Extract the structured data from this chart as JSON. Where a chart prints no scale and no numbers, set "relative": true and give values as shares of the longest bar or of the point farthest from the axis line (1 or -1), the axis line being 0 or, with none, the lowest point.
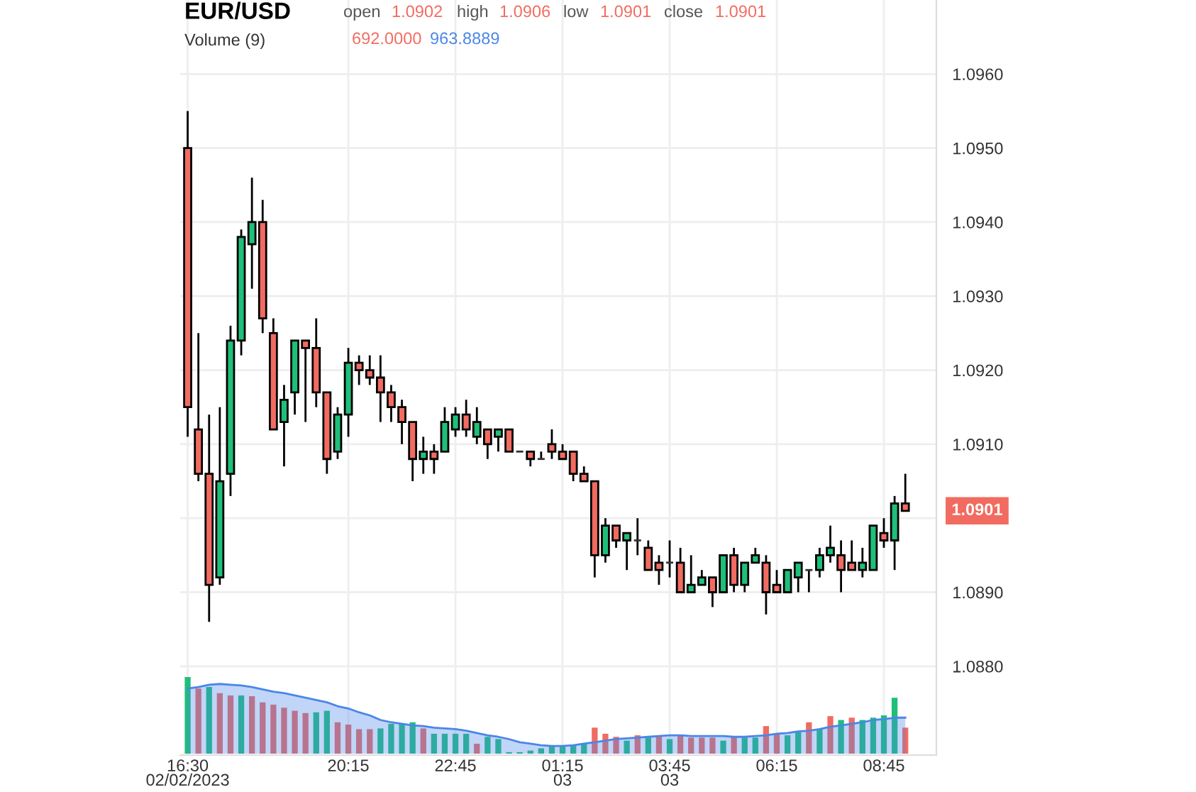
{
  "chart_data": [
    {
      "type": "candlestick",
      "title": "EUR/USD",
      "categories": [
        "16:30\n02/02/2023",
        null,
        null,
        null,
        null,
        null,
        null,
        null,
        null,
        null,
        null,
        null,
        null,
        null,
        null,
        "20:15",
        null,
        null,
        null,
        null,
        null,
        null,
        null,
        null,
        null,
        "22:45",
        null,
        null,
        null,
        null,
        null,
        null,
        null,
        null,
        null,
        "01:15\n03",
        null,
        null,
        null,
        null,
        null,
        null,
        null,
        null,
        null,
        "03:45\n03",
        null,
        null,
        null,
        null,
        null,
        null,
        null,
        null,
        null,
        "06:15",
        null,
        null,
        null,
        null,
        null,
        null,
        null,
        null,
        null,
        "08:45",
        null,
        null
      ],
      "ohlc": [
        [
          1.095,
          1.0955,
          1.0911,
          1.0915
        ],
        [
          1.0912,
          1.0925,
          1.0905,
          1.0906
        ],
        [
          1.0906,
          1.0914,
          1.0886,
          1.0891
        ],
        [
          1.0892,
          1.0915,
          1.0891,
          1.0905
        ],
        [
          1.0906,
          1.0926,
          1.0903,
          1.0924
        ],
        [
          1.0924,
          1.0939,
          1.0922,
          1.0938
        ],
        [
          1.0937,
          1.0946,
          1.0931,
          1.094
        ],
        [
          1.094,
          1.0943,
          1.0925,
          1.0927
        ],
        [
          1.0925,
          1.0927,
          1.0912,
          1.0912
        ],
        [
          1.0913,
          1.0918,
          1.0907,
          1.0916
        ],
        [
          1.0917,
          1.0924,
          1.0914,
          1.0924
        ],
        [
          1.0924,
          1.0924,
          1.0913,
          1.0923
        ],
        [
          1.0923,
          1.0927,
          1.0915,
          1.0917
        ],
        [
          1.0917,
          1.0917,
          1.0906,
          1.0908
        ],
        [
          1.0909,
          1.0915,
          1.0908,
          1.0914
        ],
        [
          1.0914,
          1.0923,
          1.0911,
          1.0921
        ],
        [
          1.0921,
          1.0922,
          1.0918,
          1.092
        ],
        [
          1.092,
          1.0922,
          1.0918,
          1.0919
        ],
        [
          1.0919,
          1.0922,
          1.0913,
          1.0917
        ],
        [
          1.0917,
          1.0918,
          1.0913,
          1.0915
        ],
        [
          1.0915,
          1.0916,
          1.091,
          1.0913
        ],
        [
          1.0913,
          1.0913,
          1.0905,
          1.0908
        ],
        [
          1.0908,
          1.0911,
          1.0906,
          1.0909
        ],
        [
          1.0909,
          1.091,
          1.0906,
          1.0908
        ],
        [
          1.0909,
          1.0915,
          1.0909,
          1.0913
        ],
        [
          1.0912,
          1.0915,
          1.0911,
          1.0914
        ],
        [
          1.0914,
          1.0916,
          1.0911,
          1.0912
        ],
        [
          1.0911,
          1.0915,
          1.091,
          1.0913
        ],
        [
          1.0912,
          1.0912,
          1.0908,
          1.091
        ],
        [
          1.0911,
          1.0912,
          1.0909,
          1.0912
        ],
        [
          1.0912,
          1.0912,
          1.0909,
          1.0909
        ],
        [
          1.0909,
          1.0909,
          1.0909,
          1.0909
        ],
        [
          1.0909,
          1.0909,
          1.0907,
          1.0908
        ],
        [
          1.0908,
          1.0909,
          1.0908,
          1.0908
        ],
        [
          1.091,
          1.0912,
          1.0908,
          1.0909
        ],
        [
          1.0909,
          1.091,
          1.0908,
          1.0908
        ],
        [
          1.0909,
          1.0909,
          1.0905,
          1.0906
        ],
        [
          1.0906,
          1.0907,
          1.0905,
          1.0905
        ],
        [
          1.0905,
          1.0905,
          1.0892,
          1.0895
        ],
        [
          1.0895,
          1.09,
          1.0894,
          1.0899
        ],
        [
          1.0899,
          1.0899,
          1.0896,
          1.0897
        ],
        [
          1.0897,
          1.0898,
          1.0893,
          1.0898
        ],
        [
          1.0897,
          1.09,
          1.0895,
          1.0897
        ],
        [
          1.0896,
          1.0897,
          1.0893,
          1.0893
        ],
        [
          1.0894,
          1.0895,
          1.0891,
          1.0893
        ],
        [
          1.0894,
          1.0897,
          1.0892,
          1.0894
        ],
        [
          1.0894,
          1.0896,
          1.089,
          1.089
        ],
        [
          1.089,
          1.0895,
          1.089,
          1.0891
        ],
        [
          1.0891,
          1.0893,
          1.0891,
          1.0892
        ],
        [
          1.0892,
          1.0892,
          1.0888,
          1.089
        ],
        [
          1.089,
          1.0895,
          1.089,
          1.0895
        ],
        [
          1.0895,
          1.0896,
          1.089,
          1.0891
        ],
        [
          1.0891,
          1.0894,
          1.089,
          1.0894
        ],
        [
          1.0894,
          1.0896,
          1.0894,
          1.0895
        ],
        [
          1.0894,
          1.0895,
          1.0887,
          1.089
        ],
        [
          1.0891,
          1.0893,
          1.089,
          1.089
        ],
        [
          1.089,
          1.0893,
          1.089,
          1.0893
        ],
        [
          1.0892,
          1.0894,
          1.089,
          1.0894
        ],
        [
          1.0893,
          1.0893,
          1.089,
          1.0893
        ],
        [
          1.0893,
          1.0896,
          1.0892,
          1.0895
        ],
        [
          1.0895,
          1.0899,
          1.0894,
          1.0896
        ],
        [
          1.0895,
          1.0897,
          1.089,
          1.0893
        ],
        [
          1.0894,
          1.0897,
          1.0893,
          1.0893
        ],
        [
          1.0893,
          1.0896,
          1.0892,
          1.0894
        ],
        [
          1.0893,
          1.0899,
          1.0893,
          1.0899
        ],
        [
          1.0898,
          1.09,
          1.0896,
          1.0897
        ],
        [
          1.0897,
          1.0903,
          1.0893,
          1.0902
        ],
        [
          1.0902,
          1.0906,
          1.0901,
          1.0901
        ]
      ],
      "ylim": [
        1.0868,
        1.097
      ],
      "yticks": [
        {
          "value": 1.088,
          "label": "1.0880"
        },
        {
          "value": 1.089,
          "label": "1.0890"
        },
        {
          "value": 1.09,
          "label": null
        },
        {
          "value": 1.091,
          "label": "1.0910"
        },
        {
          "value": 1.092,
          "label": "1.0920"
        },
        {
          "value": 1.093,
          "label": "1.0930"
        },
        {
          "value": 1.094,
          "label": "1.0940"
        },
        {
          "value": 1.095,
          "label": "1.0950"
        },
        {
          "value": 1.096,
          "label": "1.0960"
        }
      ],
      "grid": true,
      "annotations": [
        "open",
        "1.0902",
        "high",
        "1.0906",
        "low",
        "1.0901",
        "close",
        "1.0901",
        "1.0901"
      ]
    },
    {
      "type": "bar",
      "title": "Volume (9)",
      "relative": true,
      "tick_labels": false,
      "categories": [
        null,
        null,
        null,
        null,
        null,
        null,
        null,
        null,
        null,
        null,
        null,
        null,
        null,
        null,
        null,
        null,
        null,
        null,
        null,
        null,
        null,
        null,
        null,
        null,
        null,
        null,
        null,
        null,
        null,
        null,
        null,
        null,
        null,
        null,
        null,
        null,
        null,
        null,
        null,
        null,
        null,
        null,
        null,
        null,
        null,
        null,
        null,
        null,
        null,
        null,
        null,
        null,
        null,
        null,
        null,
        null,
        null,
        null,
        null,
        null,
        null,
        null,
        null,
        null,
        null,
        null,
        null,
        null
      ],
      "series": [
        {
          "type": "bar",
          "values": [
            1.0,
            0.85,
            0.87,
            0.79,
            0.76,
            0.76,
            0.75,
            0.67,
            0.64,
            0.6,
            0.56,
            0.53,
            0.54,
            0.56,
            0.41,
            0.38,
            0.32,
            0.32,
            0.33,
            0.39,
            0.39,
            0.41,
            0.33,
            0.26,
            0.26,
            0.26,
            0.26,
            0.13,
            0.22,
            0.19,
            0.02,
            0.02,
            0.04,
            0.07,
            0.11,
            0.11,
            0.11,
            0.13,
            0.34,
            0.26,
            0.22,
            0.17,
            0.24,
            0.21,
            0.23,
            0.19,
            0.24,
            0.21,
            0.21,
            0.21,
            0.17,
            0.23,
            0.21,
            0.21,
            0.36,
            0.26,
            0.24,
            0.28,
            0.41,
            0.32,
            0.49,
            0.44,
            0.47,
            0.44,
            0.47,
            0.5,
            0.73,
            0.34
          ],
          "colors": [
            "#1fbf7a",
            "#f26b60",
            "#1fbf7a",
            "#f26b60",
            "#f26b60",
            "#1fbf7a",
            "#f26b60",
            "#f26b60",
            "#f26b60",
            "#f26b60",
            "#f26b60",
            "#f26b60",
            "#1fbf7a",
            "#1fbf7a",
            "#f26b60",
            "#f26b60",
            "#f26b60",
            "#f26b60",
            "#1fbf7a",
            "#1fbf7a",
            "#1fbf7a",
            "#1fbf7a",
            "#f26b60",
            "#1fbf7a",
            "#1fbf7a",
            "#1fbf7a",
            "#1fbf7a",
            "#f26b60",
            "#1fbf7a",
            "#1fbf7a",
            "#1fbf7a",
            "#1fbf7a",
            "#1fbf7a",
            "#1fbf7a",
            "#1fbf7a",
            "#1fbf7a",
            "#1fbf7a",
            "#1fbf7a",
            "#f26b60",
            "#f26b60",
            "#f26b60",
            "#1fbf7a",
            "#f26b60",
            "#1fbf7a",
            "#f26b60",
            "#1fbf7a",
            "#f26b60",
            "#f26b60",
            "#f26b60",
            "#f26b60",
            "#1fbf7a",
            "#f26b60",
            "#1fbf7a",
            "#1fbf7a",
            "#f26b60",
            "#f26b60",
            "#1fbf7a",
            "#1fbf7a",
            "#f26b60",
            "#1fbf7a",
            "#f26b60",
            "#1fbf7a",
            "#f26b60",
            "#1fbf7a",
            "#1fbf7a",
            "#1fbf7a",
            "#1fbf7a",
            "#f26b60"
          ]
        },
        {
          "type": "area",
          "color": "#4a86e8",
          "values": [
            0.85,
            0.87,
            0.9,
            0.91,
            0.9,
            0.89,
            0.87,
            0.84,
            0.81,
            0.79,
            0.76,
            0.73,
            0.7,
            0.67,
            0.62,
            0.59,
            0.54,
            0.5,
            0.44,
            0.41,
            0.39,
            0.37,
            0.36,
            0.34,
            0.33,
            0.32,
            0.3,
            0.27,
            0.24,
            0.22,
            0.19,
            0.15,
            0.13,
            0.11,
            0.1,
            0.1,
            0.11,
            0.13,
            0.15,
            0.17,
            0.19,
            0.2,
            0.21,
            0.22,
            0.23,
            0.24,
            0.24,
            0.23,
            0.23,
            0.23,
            0.23,
            0.22,
            0.22,
            0.23,
            0.24,
            0.26,
            0.27,
            0.29,
            0.3,
            0.32,
            0.35,
            0.37,
            0.39,
            0.41,
            0.44,
            0.45,
            0.47,
            0.47
          ]
        }
      ],
      "annotations": [
        "692.0000",
        "963.8889"
      ]
    }
  ]
}
